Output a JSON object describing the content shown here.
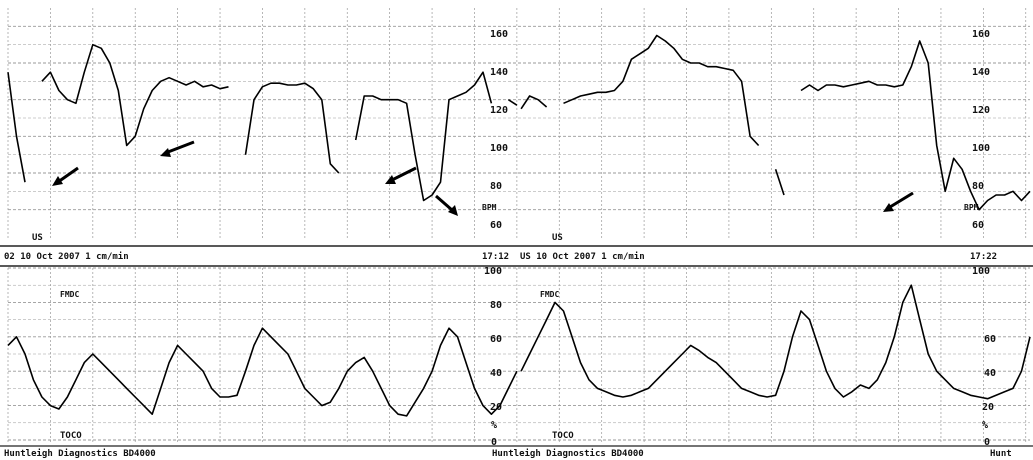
{
  "chart_data": {
    "type": "line",
    "fhr_panel": {
      "scale_labels": [
        "160",
        "140",
        "120",
        "100",
        "80",
        "60"
      ],
      "unit_label": "BPM",
      "channel_label": "US",
      "ylim": [
        50,
        170
      ],
      "series": [
        {
          "x": [
            0,
            4,
            8,
            12,
            16,
            20,
            24,
            28,
            32,
            36,
            40,
            44,
            48,
            52,
            56,
            60,
            64,
            68,
            72,
            76,
            80,
            84,
            88,
            92,
            96,
            100,
            104,
            108,
            112,
            116,
            120,
            124,
            128,
            132,
            136,
            140,
            144,
            148,
            152,
            156,
            160,
            164,
            168,
            172,
            176,
            180,
            184,
            188,
            192,
            196,
            200,
            204,
            208,
            212,
            216,
            220,
            224,
            228,
            232,
            236,
            240
          ],
          "y": [
            135,
            100,
            75,
            null,
            130,
            135,
            125,
            120,
            118,
            135,
            150,
            148,
            140,
            125,
            95,
            100,
            115,
            125,
            130,
            132,
            130,
            128,
            130,
            127,
            128,
            126,
            127,
            null,
            90,
            120,
            127,
            129,
            129,
            128,
            128,
            129,
            126,
            120,
            85,
            80,
            null,
            98,
            122,
            122,
            120,
            120,
            120,
            118,
            90,
            65,
            68,
            75,
            120,
            122,
            124,
            128,
            135,
            118,
            null,
            120,
            117
          ]
        },
        {
          "x": [
            242,
            246,
            250,
            254,
            258,
            262,
            266,
            270,
            274,
            278,
            282,
            286,
            290,
            294,
            298,
            302,
            306,
            310,
            314,
            318,
            322,
            326,
            330,
            334,
            338,
            342,
            346,
            350,
            354,
            358,
            362,
            366,
            370,
            374,
            378,
            382,
            386,
            390,
            394,
            398,
            402,
            406,
            410,
            414,
            418,
            422,
            426,
            430,
            434,
            438,
            442,
            446,
            450,
            454,
            458,
            462,
            466,
            470,
            474,
            478,
            482
          ],
          "y": [
            115,
            122,
            120,
            116,
            null,
            118,
            120,
            122,
            123,
            124,
            124,
            125,
            130,
            142,
            145,
            148,
            155,
            152,
            148,
            142,
            140,
            140,
            138,
            138,
            137,
            136,
            130,
            100,
            95,
            null,
            82,
            68,
            null,
            125,
            128,
            125,
            128,
            128,
            127,
            128,
            129,
            130,
            128,
            128,
            127,
            128,
            138,
            152,
            140,
            95,
            70,
            88,
            82,
            70,
            60,
            65,
            68,
            68,
            70,
            65,
            70
          ]
        }
      ]
    },
    "strip_labels": [
      {
        "left": "02  10 Oct 2007  1 cm/min",
        "time": "17:12"
      },
      {
        "left": "US  10 Oct 2007  1 cm/min",
        "time": "17:22"
      }
    ],
    "toco_panel": {
      "scale_labels": [
        "100",
        "80",
        "60",
        "40",
        "20"
      ],
      "unit_label": "%",
      "zero_label": "0",
      "channel_label": "TOCO",
      "event_label": "FMDC",
      "ylim": [
        0,
        100
      ],
      "series": [
        {
          "x": [
            0,
            4,
            8,
            12,
            16,
            20,
            24,
            28,
            32,
            36,
            40,
            44,
            48,
            52,
            56,
            60,
            64,
            68,
            72,
            76,
            80,
            84,
            88,
            92,
            96,
            100,
            104,
            108,
            112,
            116,
            120,
            124,
            128,
            132,
            136,
            140,
            144,
            148,
            152,
            156,
            160,
            164,
            168,
            172,
            176,
            180,
            184,
            188,
            192,
            196,
            200,
            204,
            208,
            212,
            216,
            220,
            224,
            228,
            232,
            236,
            240
          ],
          "y": [
            55,
            60,
            50,
            35,
            25,
            20,
            18,
            25,
            35,
            45,
            50,
            45,
            40,
            35,
            30,
            25,
            20,
            15,
            30,
            45,
            55,
            50,
            45,
            40,
            30,
            25,
            25,
            26,
            40,
            55,
            65,
            60,
            55,
            50,
            40,
            30,
            25,
            20,
            22,
            30,
            40,
            45,
            48,
            40,
            30,
            20,
            15,
            14,
            22,
            30,
            40,
            55,
            65,
            60,
            45,
            30,
            20,
            15,
            20,
            30,
            40
          ]
        },
        {
          "x": [
            242,
            246,
            250,
            254,
            258,
            262,
            266,
            270,
            274,
            278,
            282,
            286,
            290,
            294,
            298,
            302,
            306,
            310,
            314,
            318,
            322,
            326,
            330,
            334,
            338,
            342,
            346,
            350,
            354,
            358,
            362,
            366,
            370,
            374,
            378,
            382,
            386,
            390,
            394,
            398,
            402,
            406,
            410,
            414,
            418,
            422,
            426,
            430,
            434,
            438,
            442,
            446,
            450,
            454,
            458,
            462,
            466,
            470,
            474,
            478,
            482
          ],
          "y": [
            40,
            50,
            60,
            70,
            80,
            75,
            60,
            45,
            35,
            30,
            28,
            26,
            25,
            26,
            28,
            30,
            35,
            40,
            45,
            50,
            55,
            52,
            48,
            45,
            40,
            35,
            30,
            28,
            26,
            25,
            26,
            40,
            60,
            75,
            70,
            55,
            40,
            30,
            25,
            28,
            32,
            30,
            35,
            45,
            60,
            80,
            90,
            70,
            50,
            40,
            35,
            30,
            28,
            26,
            25,
            24,
            26,
            28,
            30,
            40,
            60
          ]
        }
      ]
    },
    "footer": {
      "brand_left": "Huntleigh Diagnostics   BD4000",
      "brand_right": "Huntleigh Diagnostics   BD4000",
      "brand_right_partial": "Hunt"
    },
    "time_range": [
      0,
      482
    ],
    "grid": true
  }
}
